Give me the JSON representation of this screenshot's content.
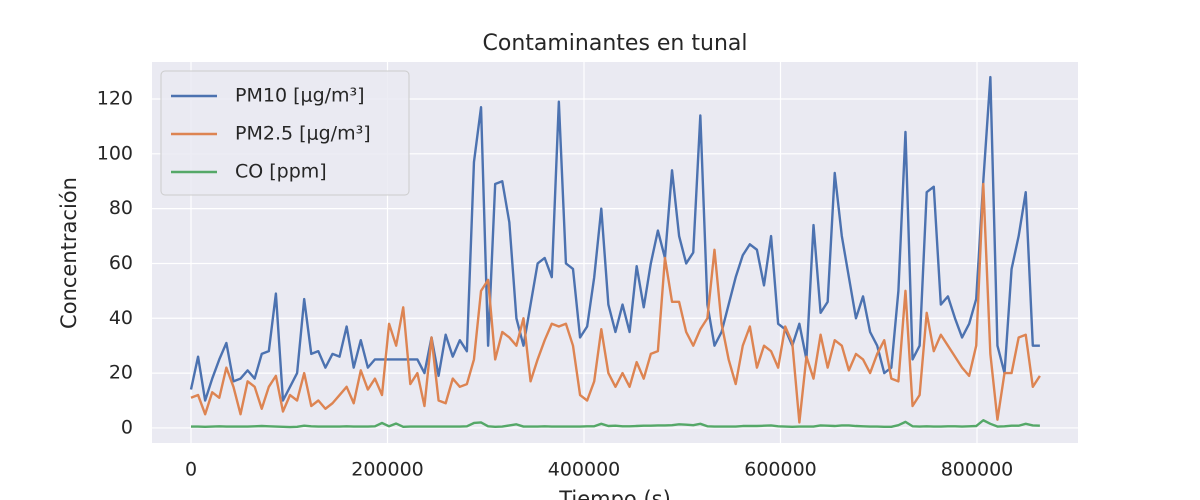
{
  "chart_data": {
    "type": "line",
    "title": "Contaminantes en tunal",
    "x_label": "Tiempo (s)",
    "y_label": "Concentración",
    "x": [
      0,
      7200,
      14400,
      21600,
      28800,
      36000,
      43200,
      50400,
      57600,
      64800,
      72000,
      79200,
      86400,
      93600,
      100800,
      108000,
      115200,
      122400,
      129600,
      136800,
      144000,
      151200,
      158400,
      165600,
      172800,
      180000,
      187200,
      194400,
      201600,
      208800,
      216000,
      223200,
      230400,
      237600,
      244800,
      252000,
      259200,
      266400,
      273600,
      280800,
      288000,
      295200,
      302400,
      309600,
      316800,
      324000,
      331200,
      338400,
      345600,
      352800,
      360000,
      367200,
      374400,
      381600,
      388800,
      396000,
      403200,
      410400,
      417600,
      424800,
      432000,
      439200,
      446400,
      453600,
      460800,
      468000,
      475200,
      482400,
      489600,
      496800,
      504000,
      511200,
      518400,
      525600,
      532800,
      540000,
      547200,
      554400,
      561600,
      568800,
      576000,
      583200,
      590400,
      597600,
      604800,
      612000,
      619200,
      626400,
      633600,
      640800,
      648000,
      655200,
      662400,
      669600,
      676800,
      684000,
      691200,
      698400,
      705600,
      712800,
      720000,
      727200,
      734400,
      741600,
      748800,
      756000,
      763200,
      770400,
      777600,
      784800,
      792000,
      799200,
      806400,
      813600,
      820800,
      828000,
      835200,
      842400,
      849600,
      856800,
      864000
    ],
    "series": [
      {
        "name": "PM10 [μg/m³]",
        "color": "#4c72b0",
        "values": [
          14,
          26,
          10,
          18,
          25,
          31,
          17,
          18,
          21,
          18,
          27,
          28,
          49,
          10,
          15,
          20,
          47,
          27,
          28,
          22,
          27,
          26,
          37,
          22,
          32,
          22,
          25,
          25,
          25,
          25,
          25,
          25,
          25,
          20,
          33,
          19,
          34,
          26,
          32,
          28,
          97,
          117,
          30,
          89,
          90,
          75,
          40,
          30,
          45,
          60,
          62,
          55,
          119,
          60,
          58,
          33,
          37,
          55,
          80,
          45,
          35,
          45,
          35,
          59,
          44,
          60,
          72,
          62,
          94,
          70,
          60,
          64,
          114,
          45,
          30,
          35,
          45,
          55,
          63,
          67,
          65,
          52,
          70,
          38,
          36,
          30,
          38,
          25,
          74,
          42,
          46,
          93,
          70,
          55,
          40,
          48,
          35,
          30,
          20,
          22,
          50,
          108,
          25,
          30,
          86,
          88,
          45,
          48,
          40,
          33,
          38,
          47,
          90,
          128,
          30,
          20,
          58,
          70,
          86,
          30,
          30
        ]
      },
      {
        "name": "PM2.5 [μg/m³]",
        "color": "#dd8452",
        "values": [
          11,
          12,
          5,
          13,
          11,
          22,
          15,
          5,
          17,
          15,
          7,
          15,
          19,
          6,
          12,
          10,
          20,
          8,
          10,
          7,
          9,
          12,
          15,
          9,
          21,
          14,
          18,
          12,
          38,
          30,
          44,
          16,
          20,
          8,
          33,
          10,
          9,
          18,
          15,
          16,
          25,
          50,
          54,
          25,
          35,
          33,
          30,
          40,
          17,
          25,
          32,
          38,
          37,
          38,
          30,
          12,
          10,
          17,
          36,
          20,
          15,
          20,
          15,
          24,
          18,
          27,
          28,
          62,
          46,
          46,
          35,
          30,
          36,
          40,
          65,
          38,
          25,
          16,
          30,
          37,
          22,
          30,
          28,
          22,
          37,
          31,
          2,
          26,
          18,
          34,
          22,
          32,
          30,
          21,
          27,
          25,
          20,
          27,
          32,
          18,
          17,
          50,
          8,
          12,
          42,
          28,
          34,
          30,
          26,
          22,
          19,
          30,
          89,
          27,
          3,
          20,
          20,
          33,
          34,
          15,
          19
        ]
      },
      {
        "name": "CO [ppm]",
        "color": "#55a868",
        "values": [
          0.5,
          0.5,
          0.4,
          0.5,
          0.6,
          0.5,
          0.5,
          0.5,
          0.5,
          0.6,
          0.7,
          0.6,
          0.5,
          0.4,
          0.3,
          0.4,
          0.8,
          0.6,
          0.5,
          0.5,
          0.5,
          0.5,
          0.6,
          0.5,
          0.5,
          0.5,
          0.6,
          1.8,
          0.6,
          1.6,
          0.4,
          0.5,
          0.5,
          0.5,
          0.5,
          0.5,
          0.5,
          0.5,
          0.5,
          0.6,
          1.8,
          2.0,
          0.6,
          0.4,
          0.5,
          0.9,
          1.3,
          0.5,
          0.5,
          0.5,
          0.6,
          0.5,
          0.5,
          0.5,
          0.5,
          0.5,
          0.6,
          0.6,
          1.5,
          0.7,
          0.8,
          0.6,
          0.6,
          0.7,
          0.8,
          0.8,
          0.9,
          0.9,
          1.0,
          1.3,
          1.2,
          1.0,
          1.5,
          0.6,
          0.5,
          0.5,
          0.5,
          0.5,
          0.7,
          0.7,
          0.7,
          0.8,
          0.9,
          0.6,
          0.5,
          0.4,
          0.5,
          0.5,
          0.5,
          0.9,
          0.8,
          0.7,
          0.9,
          0.9,
          0.7,
          0.6,
          0.5,
          0.5,
          0.4,
          0.4,
          1.0,
          2.2,
          0.6,
          0.5,
          0.6,
          0.5,
          0.5,
          0.6,
          0.6,
          0.5,
          0.6,
          0.7,
          2.8,
          1.5,
          0.5,
          0.6,
          0.8,
          0.8,
          1.5,
          0.9,
          0.8
        ]
      }
    ],
    "xlim": [
      -39700,
      902800
    ],
    "ylim": [
      -5.5,
      133.5
    ],
    "xticks": [
      0,
      200000,
      400000,
      600000,
      800000
    ],
    "yticks": [
      0,
      20,
      40,
      60,
      80,
      100,
      120
    ],
    "grid": true,
    "legend": "upper-left"
  }
}
